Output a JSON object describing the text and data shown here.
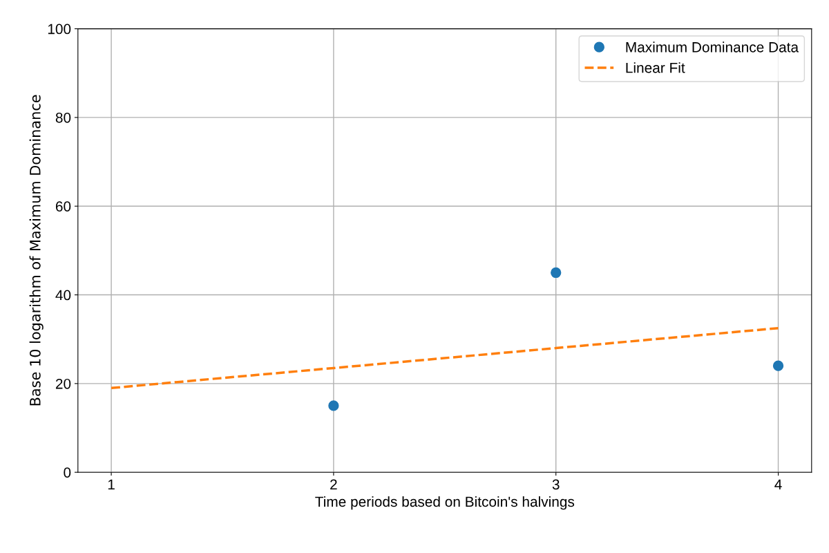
{
  "chart_data": {
    "type": "scatter",
    "xlabel": "Time periods based on Bitcoin's halvings",
    "ylabel": "Base 10 logarithm of Maximum Dominance",
    "series": [
      {
        "name": "Maximum Dominance Data",
        "color": "#1f77b4",
        "x": [
          2,
          3,
          4
        ],
        "values": [
          15,
          45,
          24
        ],
        "marker": "circle"
      },
      {
        "name": "Linear Fit",
        "type": "line",
        "color": "#ff7f0e",
        "x": [
          1,
          2,
          3,
          4
        ],
        "values": [
          19,
          23.5,
          28,
          32.5
        ],
        "line_style": "dashed",
        "marker": "none"
      }
    ],
    "xlim": [
      0.85,
      4.15
    ],
    "xticks": [
      1,
      2,
      3,
      4
    ],
    "ylim": [
      0,
      100
    ],
    "yticks": [
      0,
      20,
      40,
      60,
      80,
      100
    ],
    "grid": true,
    "legend": "top right"
  }
}
